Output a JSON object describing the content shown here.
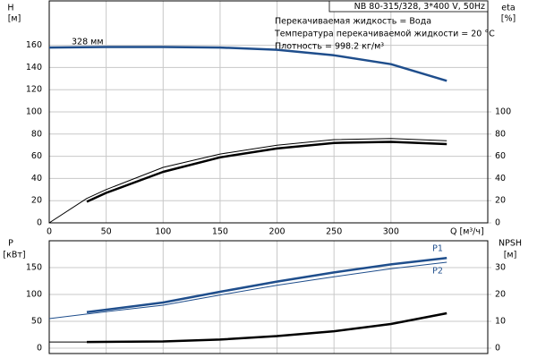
{
  "chart_data": [
    {
      "type": "line",
      "title": "NB 80-315/328, 3*400 V, 50Hz",
      "notes": [
        "Перекачиваемая жидкость = Вода",
        "Температура перекачиваемой жидкости = 20 °C",
        "Плотность = 998.2 кг/м³"
      ],
      "y_label": "H",
      "y_unit": "[м]",
      "y2_label": "eta",
      "y2_unit": "[%]",
      "x_label": "Q [м³/ч]",
      "xlim": [
        0,
        385
      ],
      "xticks": [
        0,
        50,
        100,
        150,
        200,
        250,
        300
      ],
      "ylim": [
        0,
        200
      ],
      "yticks": [
        0,
        20,
        40,
        60,
        80,
        100,
        120,
        140,
        160
      ],
      "y2lim": [
        0,
        200
      ],
      "y2ticks": [
        0,
        20,
        40,
        60,
        80,
        100
      ],
      "grid": true,
      "series": [
        {
          "name": "328 мм",
          "color": "#1f4e8c",
          "linewidth": 2.5,
          "x": [
            0,
            50,
            100,
            150,
            200,
            250,
            300,
            349
          ],
          "values": [
            158,
            158.5,
            158.5,
            158,
            156,
            151,
            143,
            128
          ]
        },
        {
          "color": "#000000",
          "linewidth": 1,
          "axis": "y2",
          "x": [
            0,
            33,
            50,
            100,
            150,
            200,
            250,
            300,
            349
          ],
          "values": [
            0,
            22,
            30,
            50,
            62,
            70,
            75,
            76,
            74
          ]
        },
        {
          "color": "#000000",
          "linewidth": 2.5,
          "axis": "y2",
          "x": [
            33,
            50,
            100,
            150,
            200,
            250,
            300,
            349
          ],
          "values": [
            19,
            27,
            46,
            59,
            67,
            72,
            73,
            71
          ]
        }
      ]
    },
    {
      "type": "line",
      "y_label": "P",
      "y_unit": "[кВт]",
      "y2_label": "NPSH",
      "y2_unit": "[м]",
      "xlim": [
        0,
        385
      ],
      "xticks": [
        0,
        50,
        100,
        150,
        200,
        250,
        300
      ],
      "ylim": [
        -10,
        200
      ],
      "yticks": [
        0,
        50,
        100,
        150
      ],
      "y2lim": [
        -2,
        40
      ],
      "y2ticks": [
        0,
        10,
        20,
        30
      ],
      "grid": true,
      "series": [
        {
          "name": "P1",
          "color": "#1f4e8c",
          "linewidth": 2.5,
          "x": [
            33,
            100,
            150,
            200,
            250,
            300,
            349
          ],
          "values": [
            67,
            85,
            105,
            124,
            141,
            156,
            168
          ]
        },
        {
          "name": "P2",
          "color": "#1f4e8c",
          "linewidth": 1,
          "x": [
            0,
            50,
            100,
            150,
            200,
            250,
            300,
            349
          ],
          "values": [
            55,
            68,
            80,
            99,
            117,
            133,
            148,
            160
          ]
        },
        {
          "color": "#000000",
          "linewidth": 1,
          "axis": "y2",
          "x": [
            0,
            33
          ],
          "values": [
            2.3,
            2.3
          ]
        },
        {
          "color": "#000000",
          "linewidth": 2.5,
          "axis": "y2",
          "x": [
            33,
            100,
            150,
            200,
            250,
            300,
            349
          ],
          "values": [
            2.3,
            2.5,
            3.2,
            4.5,
            6.3,
            9,
            13
          ]
        }
      ]
    }
  ]
}
